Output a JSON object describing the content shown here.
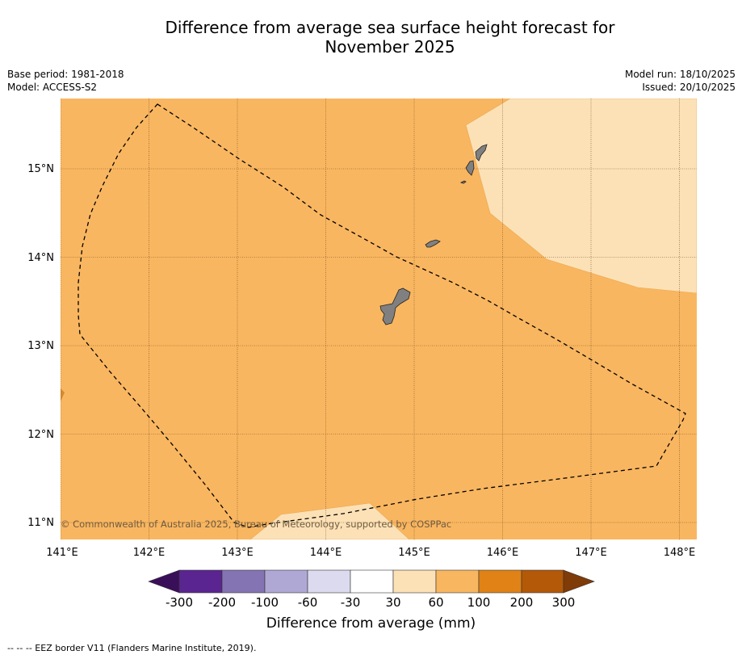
{
  "title": {
    "line1": "Difference from average sea surface height forecast for",
    "line2": "November 2025"
  },
  "meta_left": {
    "base_period": "Base period: 1981-2018",
    "model": "Model: ACCESS-S2"
  },
  "meta_right": {
    "model_run": "Model run: 18/10/2025",
    "issued": "Issued: 20/10/2025"
  },
  "axes": {
    "lon_labels": [
      "141°E",
      "142°E",
      "143°E",
      "144°E",
      "145°E",
      "146°E",
      "147°E",
      "148°E"
    ],
    "lat_labels": [
      "15°N",
      "14°N",
      "13°N",
      "12°N",
      "11°N"
    ]
  },
  "copyright": "© Commonwealth of Australia 2025, Bureau of Meteorology, supported by COSPPac",
  "colorbar": {
    "tick_labels": [
      "-300",
      "-200",
      "-100",
      "-60",
      "-30",
      "30",
      "60",
      "100",
      "200",
      "300"
    ],
    "colors": [
      "#3a0f5a",
      "#5a2590",
      "#8474b3",
      "#b0a8d4",
      "#dcdaee",
      "#ffffff",
      "#fde1b6",
      "#f8b660",
      "#e08215",
      "#b35908",
      "#7f3b08"
    ],
    "title": "Difference from average (mm)"
  },
  "region_colors": {
    "background": "#f9b660",
    "light": "#fde1b6",
    "land": "#808080"
  },
  "footer": "--  --  -- EEZ border V11 (Flanders Marine Institute, 2019)."
}
